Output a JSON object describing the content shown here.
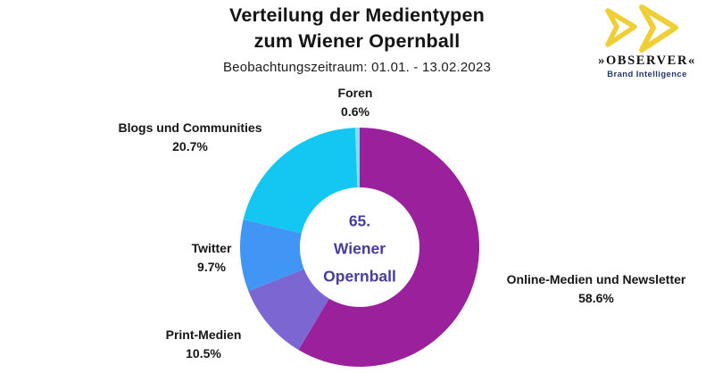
{
  "header": {
    "title_line1": "Verteilung der Medientypen",
    "title_line2": "zum Wiener Opernball",
    "subtitle": "Beobachtungszeitraum: 01.01. - 13.02.2023"
  },
  "logo": {
    "brand": "»OBSERVER«",
    "tagline": "Brand Intelligence",
    "accent_color": "#EFCF35",
    "tagline_color": "#21386B"
  },
  "chart_data": {
    "type": "pie",
    "variant": "donut",
    "title": "Verteilung der Medientypen zum Wiener Opernball",
    "subtitle": "Beobachtungszeitraum: 01.01. - 13.02.2023",
    "unit": "%",
    "hole_ratio": 0.5,
    "start_angle_deg": 0,
    "direction": "clockwise",
    "legend_position": "labels-around-slices",
    "center_label": {
      "line1": "65.",
      "line2": "Wiener",
      "line3": "Opernball",
      "color": "#473D9B"
    },
    "slices": [
      {
        "id": "online-medien",
        "label": "Online-Medien und Newsletter",
        "value": 58.6,
        "pct": "58.6%",
        "color": "#9A219B"
      },
      {
        "id": "print-medien",
        "label": "Print-Medien",
        "value": 10.5,
        "pct": "10.5%",
        "color": "#7B66D2"
      },
      {
        "id": "twitter",
        "label": "Twitter",
        "value": 9.7,
        "pct": "9.7%",
        "color": "#4196F5"
      },
      {
        "id": "blogs",
        "label": "Blogs und Communities",
        "value": 20.7,
        "pct": "20.7%",
        "color": "#14C7F3"
      },
      {
        "id": "foren",
        "label": "Foren",
        "value": 0.6,
        "pct": "0.6%",
        "color": "#7FDFF6"
      }
    ]
  }
}
